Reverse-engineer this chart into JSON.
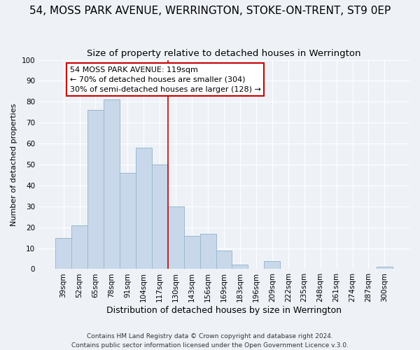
{
  "title": "54, MOSS PARK AVENUE, WERRINGTON, STOKE-ON-TRENT, ST9 0EP",
  "subtitle": "Size of property relative to detached houses in Werrington",
  "xlabel": "Distribution of detached houses by size in Werrington",
  "ylabel": "Number of detached properties",
  "bar_color": "#c8d8ea",
  "bar_edge_color": "#9ab8d0",
  "categories": [
    "39sqm",
    "52sqm",
    "65sqm",
    "78sqm",
    "91sqm",
    "104sqm",
    "117sqm",
    "130sqm",
    "143sqm",
    "156sqm",
    "169sqm",
    "183sqm",
    "196sqm",
    "209sqm",
    "222sqm",
    "235sqm",
    "248sqm",
    "261sqm",
    "274sqm",
    "287sqm",
    "300sqm"
  ],
  "values": [
    15,
    21,
    76,
    81,
    46,
    58,
    50,
    30,
    16,
    17,
    9,
    2,
    0,
    4,
    0,
    0,
    0,
    0,
    0,
    0,
    1
  ],
  "vline_x_index": 6,
  "vline_color": "#cc0000",
  "ylim": [
    0,
    100
  ],
  "yticks": [
    0,
    10,
    20,
    30,
    40,
    50,
    60,
    70,
    80,
    90,
    100
  ],
  "annotation_line1": "54 MOSS PARK AVENUE: 119sqm",
  "annotation_line2": "← 70% of detached houses are smaller (304)",
  "annotation_line3": "30% of semi-detached houses are larger (128) →",
  "annotation_box_facecolor": "#ffffff",
  "annotation_box_edgecolor": "#cc0000",
  "footer1": "Contains HM Land Registry data © Crown copyright and database right 2024.",
  "footer2": "Contains public sector information licensed under the Open Government Licence v.3.0.",
  "background_color": "#eef2f7",
  "grid_color": "#ffffff",
  "title_fontsize": 11,
  "subtitle_fontsize": 9.5,
  "xlabel_fontsize": 9,
  "ylabel_fontsize": 8,
  "tick_fontsize": 7.5,
  "annotation_fontsize": 8,
  "footer_fontsize": 6.5
}
